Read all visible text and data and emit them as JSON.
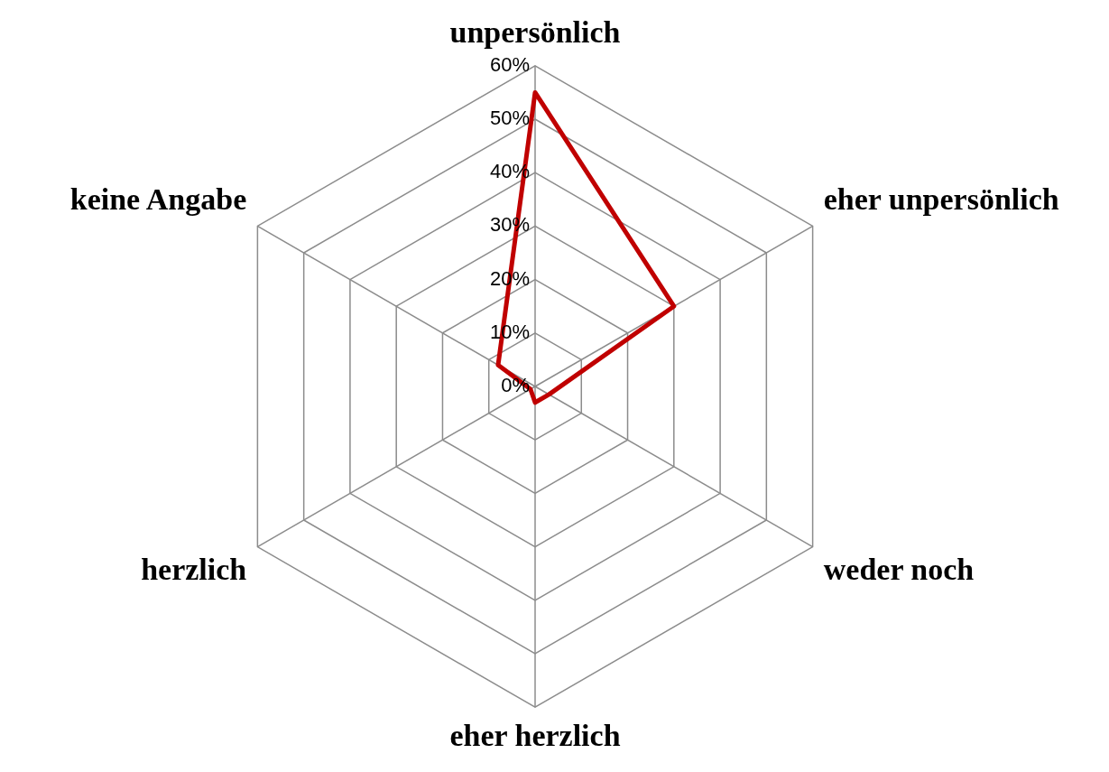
{
  "chart_data": {
    "type": "radar",
    "categories": [
      "unpersönlich",
      "eher unpersönlich",
      "weder noch",
      "eher herzlich",
      "herzlich",
      "keine Angabe"
    ],
    "series": [
      {
        "color": "#c00000",
        "values": [
          55,
          30,
          3,
          3,
          1,
          8
        ]
      }
    ],
    "ylim": [
      0,
      60
    ],
    "yticks": [
      {
        "value": 0,
        "label": "0%"
      },
      {
        "value": 10,
        "label": "10%"
      },
      {
        "value": 20,
        "label": "20%"
      },
      {
        "value": 30,
        "label": "30%"
      },
      {
        "value": 40,
        "label": "40%"
      },
      {
        "value": 50,
        "label": "50%"
      },
      {
        "value": 60,
        "label": "60%"
      }
    ],
    "grid": true,
    "legend": false,
    "marker": "none",
    "line_style": "solid"
  }
}
